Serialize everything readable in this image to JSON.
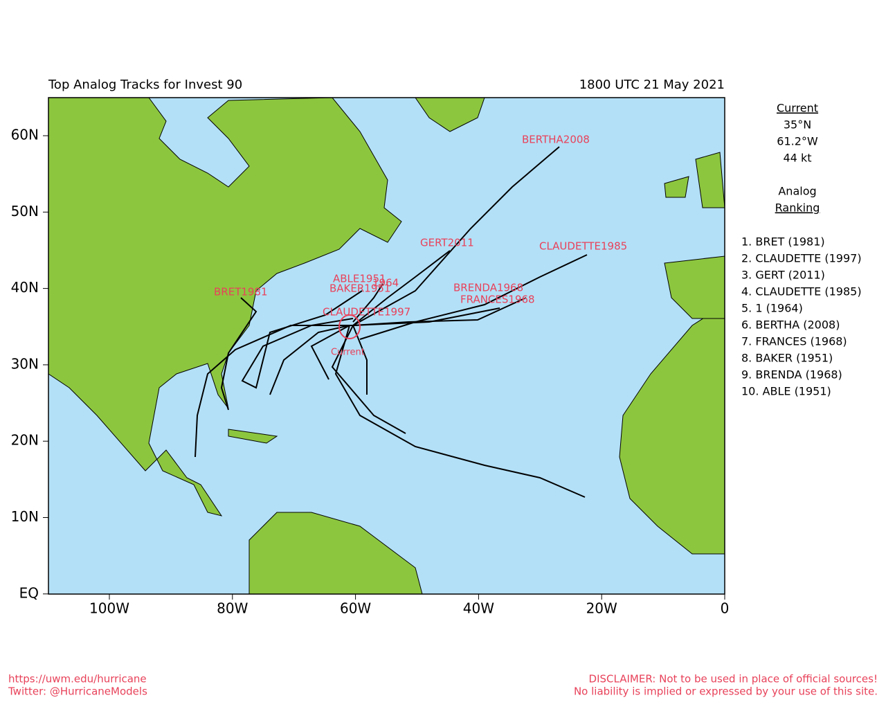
{
  "header": {
    "title": "Top Analog Tracks for Invest 90",
    "time": "1800 UTC 21 May 2021"
  },
  "lat_labels": [
    "60N",
    "50N",
    "40N",
    "30N",
    "20N",
    "10N",
    "EQ"
  ],
  "lon_labels": [
    "100W",
    "80W",
    "60W",
    "40W",
    "20W",
    "0"
  ],
  "track_labels": [
    "BERTHA2008",
    "GERT2011",
    "CLAUDETTE1985",
    "ABLE1951",
    "1964",
    "BAKER1951",
    "BRET1981",
    "BRENDA1968",
    "FRANCES1968",
    "CLAUDETTE1997",
    "Current"
  ],
  "current": {
    "heading": "Current",
    "lat": "35°N",
    "lon": "61.2°W",
    "wind": "44 kt"
  },
  "ranking": {
    "heading": [
      "Analog",
      "Ranking"
    ],
    "items": [
      "1.  BRET (1981)",
      "2.  CLAUDETTE (1997)",
      "3.  GERT (2011)",
      "4.  CLAUDETTE (1985)",
      "5.  1 (1964)",
      "6.  BERTHA (2008)",
      "7.  FRANCES (1968)",
      "8.  BAKER (1951)",
      "9.  BRENDA (1968)",
      "10. ABLE (1951)"
    ]
  },
  "footer": {
    "left": [
      "https://uwm.edu/hurricane",
      "Twitter: @HurricaneModels"
    ],
    "right": [
      "DISCLAIMER: Not to be used in place of official sources!",
      "No liability is implied or expressed by your use of this site."
    ]
  }
}
